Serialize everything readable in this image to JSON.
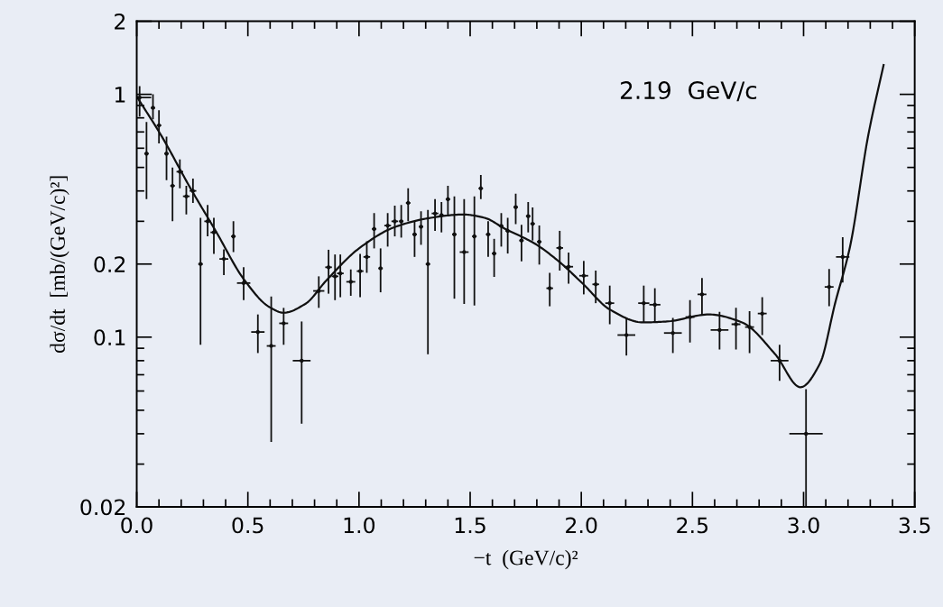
{
  "chart_data": {
    "type": "scatter",
    "xlabel": "−t  (GeV/c)²",
    "ylabel": "dσ/dt  [mb/(GeV/c)²]",
    "annotations": [
      "2.19  GeV/c"
    ],
    "log": "y",
    "grid": false,
    "legend": false,
    "xlim": [
      0,
      3.5
    ],
    "ylim": [
      0.02,
      2
    ],
    "xticks": [
      {
        "value": 0,
        "label": "0.0"
      },
      0.5,
      {
        "value": 1,
        "label": "1.0"
      },
      1.5,
      {
        "value": 2,
        "label": "2.0"
      },
      2.5,
      {
        "value": 3,
        "label": "3.0"
      },
      3.5
    ],
    "yticks": [
      0.02,
      0.1,
      0.2,
      1,
      2
    ],
    "series": [
      {
        "color": "#111111",
        "x": [
          0.013,
          0.044,
          0.073,
          0.1,
          0.134,
          0.161,
          0.194,
          0.223,
          0.253,
          0.287,
          0.319,
          0.347,
          0.392,
          0.435,
          0.481,
          0.545,
          0.605,
          0.661,
          0.742,
          0.819,
          0.863,
          0.892,
          0.916,
          0.963,
          1.005,
          1.035,
          1.068,
          1.097,
          1.129,
          1.161,
          1.19,
          1.221,
          1.25,
          1.279,
          1.31,
          1.342,
          1.371,
          1.4,
          1.429,
          1.473,
          1.519,
          1.548,
          1.581,
          1.608,
          1.64,
          1.669,
          1.705,
          1.731,
          1.761,
          1.781,
          1.811,
          1.858,
          1.903,
          1.943,
          2.011,
          2.065,
          2.128,
          2.203,
          2.281,
          2.331,
          2.412,
          2.489,
          2.543,
          2.622,
          2.696,
          2.757,
          2.814,
          2.892,
          3.011,
          3.115,
          3.176
        ],
        "values": [
          0.97,
          0.57,
          0.88,
          0.745,
          0.57,
          0.42,
          0.48,
          0.38,
          0.4,
          0.2,
          0.3,
          0.27,
          0.21,
          0.26,
          0.167,
          0.105,
          0.092,
          0.114,
          0.08,
          0.155,
          0.194,
          0.178,
          0.183,
          0.169,
          0.187,
          0.214,
          0.279,
          0.192,
          0.288,
          0.3,
          0.3,
          0.357,
          0.265,
          0.285,
          0.2,
          0.323,
          0.318,
          0.37,
          0.265,
          0.224,
          0.26,
          0.41,
          0.265,
          0.221,
          0.287,
          0.274,
          0.343,
          0.25,
          0.315,
          0.293,
          0.247,
          0.159,
          0.233,
          0.195,
          0.179,
          0.165,
          0.138,
          0.102,
          0.138,
          0.136,
          0.104,
          0.121,
          0.15,
          0.107,
          0.113,
          0.11,
          0.125,
          0.08,
          0.04,
          0.161,
          0.214
        ],
        "errors": [
          [
            0.81,
            1.08
          ],
          [
            0.37,
            0.77
          ],
          [
            0.79,
            1.0
          ],
          [
            0.628,
            0.86
          ],
          [
            0.443,
            0.67
          ],
          [
            0.3,
            0.5
          ],
          [
            0.41,
            0.54
          ],
          [
            0.32,
            0.42
          ],
          [
            0.357,
            0.45
          ],
          [
            0.093,
            0.31
          ],
          [
            0.26,
            0.35
          ],
          [
            0.22,
            0.31
          ],
          [
            0.18,
            0.23
          ],
          [
            0.224,
            0.3
          ],
          [
            0.142,
            0.194
          ],
          [
            0.086,
            0.124
          ],
          [
            0.037,
            0.147
          ],
          [
            0.093,
            0.132
          ],
          [
            0.044,
            0.116
          ],
          [
            0.132,
            0.178
          ],
          [
            0.151,
            0.229
          ],
          [
            0.142,
            0.219
          ],
          [
            0.146,
            0.219
          ],
          [
            0.148,
            0.19
          ],
          [
            0.146,
            0.22
          ],
          [
            0.184,
            0.248
          ],
          [
            0.232,
            0.324
          ],
          [
            0.153,
            0.232
          ],
          [
            0.236,
            0.324
          ],
          [
            0.26,
            0.348
          ],
          [
            0.257,
            0.35
          ],
          [
            0.3,
            0.41
          ],
          [
            0.214,
            0.3
          ],
          [
            0.24,
            0.33
          ],
          [
            0.085,
            0.334
          ],
          [
            0.274,
            0.37
          ],
          [
            0.27,
            0.36
          ],
          [
            0.318,
            0.42
          ],
          [
            0.144,
            0.38
          ],
          [
            0.137,
            0.37
          ],
          [
            0.135,
            0.38
          ],
          [
            0.37,
            0.465
          ],
          [
            0.214,
            0.3
          ],
          [
            0.177,
            0.254
          ],
          [
            0.236,
            0.324
          ],
          [
            0.221,
            0.31
          ],
          [
            0.292,
            0.39
          ],
          [
            0.205,
            0.29
          ],
          [
            0.27,
            0.36
          ],
          [
            0.25,
            0.342
          ],
          [
            0.199,
            0.288
          ],
          [
            0.134,
            0.184
          ],
          [
            0.188,
            0.274
          ],
          [
            0.166,
            0.223
          ],
          [
            0.15,
            0.206
          ],
          [
            0.138,
            0.188
          ],
          [
            0.113,
            0.163
          ],
          [
            0.084,
            0.12
          ],
          [
            0.115,
            0.163
          ],
          [
            0.115,
            0.159
          ],
          [
            0.086,
            0.12
          ],
          [
            0.095,
            0.142
          ],
          [
            0.123,
            0.175
          ],
          [
            0.089,
            0.127
          ],
          [
            0.089,
            0.132
          ],
          [
            0.086,
            0.128
          ],
          [
            0.102,
            0.146
          ],
          [
            0.066,
            0.093
          ],
          [
            0.02,
            0.061
          ],
          [
            0.134,
            0.191
          ],
          [
            0.168,
            0.258
          ]
        ],
        "xerrors": [
          [
            0.0,
            0.065
          ],
          0.01,
          0.01,
          0.01,
          0.01,
          0.01,
          0.015,
          0.015,
          0.015,
          0.01,
          0.015,
          0.015,
          0.02,
          0.01,
          0.03,
          0.03,
          0.02,
          0.02,
          0.04,
          0.025,
          0.015,
          0.015,
          0.015,
          0.02,
          0.015,
          0.015,
          0.01,
          0.01,
          0.015,
          0.015,
          0.01,
          0.01,
          0.01,
          0.01,
          0.01,
          0.015,
          0.01,
          0.01,
          0.01,
          0.02,
          0.01,
          0.01,
          0.01,
          0.01,
          0.01,
          0.01,
          0.01,
          0.01,
          0.01,
          0.01,
          0.01,
          0.015,
          0.015,
          0.02,
          0.02,
          0.015,
          0.02,
          0.04,
          0.025,
          0.025,
          0.04,
          0.02,
          0.02,
          0.04,
          0.02,
          0.02,
          0.02,
          0.04,
          0.075,
          0.02,
          0.03
        ]
      },
      {
        "type": "line",
        "color": "#111111",
        "line_style": "solid",
        "x": [
          0.0,
          0.113,
          0.242,
          0.355,
          0.484,
          0.597,
          0.661,
          0.758,
          0.855,
          1.0,
          1.161,
          1.323,
          1.468,
          1.565,
          1.655,
          1.79,
          1.899,
          2.007,
          2.128,
          2.277,
          2.385,
          2.574,
          2.723,
          2.872,
          2.986,
          3.074,
          3.142,
          3.209,
          3.291,
          3.36
        ],
        "values": [
          0.98,
          0.67,
          0.41,
          0.274,
          0.172,
          0.133,
          0.126,
          0.137,
          0.172,
          0.232,
          0.284,
          0.31,
          0.32,
          0.31,
          0.28,
          0.243,
          0.205,
          0.166,
          0.13,
          0.115,
          0.116,
          0.124,
          0.115,
          0.0851,
          0.0622,
          0.078,
          0.138,
          0.236,
          0.678,
          1.32
        ]
      }
    ]
  }
}
